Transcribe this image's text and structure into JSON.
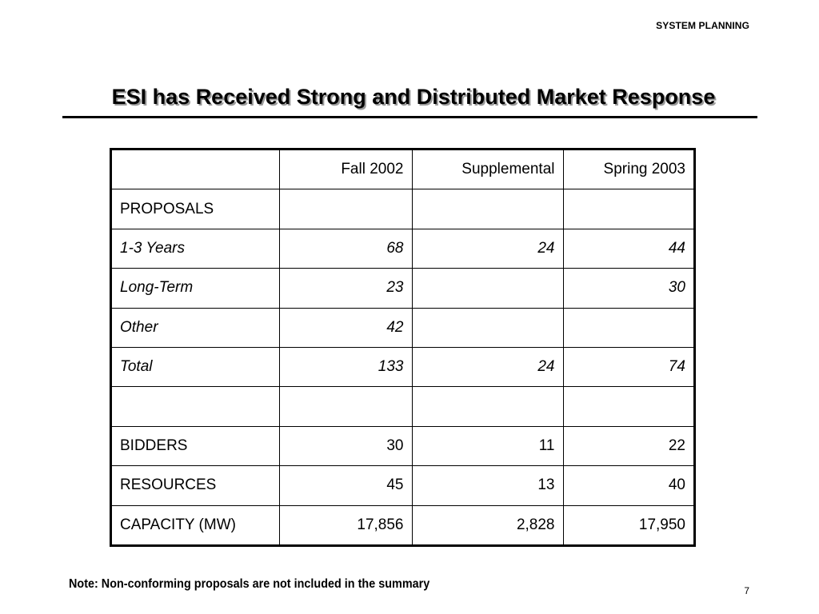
{
  "header": {
    "label": "SYSTEM PLANNING"
  },
  "title": "ESI has Received Strong and Distributed Market Response",
  "table": {
    "columns": [
      "",
      "Fall 2002",
      "Supplemental",
      "Spring 2003"
    ],
    "rows": [
      {
        "label": "PROPOSALS",
        "cells": [
          "",
          "",
          ""
        ],
        "italic": false
      },
      {
        "label": "1-3 Years",
        "cells": [
          "68",
          "24",
          "44"
        ],
        "italic": true
      },
      {
        "label": "Long-Term",
        "cells": [
          "23",
          "",
          "30"
        ],
        "italic": true
      },
      {
        "label": "Other",
        "cells": [
          "42",
          "",
          ""
        ],
        "italic": true
      },
      {
        "label": "Total",
        "cells": [
          "133",
          "24",
          "74"
        ],
        "italic": true
      },
      {
        "label": "",
        "cells": [
          "",
          "",
          ""
        ],
        "italic": false
      },
      {
        "label": "BIDDERS",
        "cells": [
          "30",
          "11",
          "22"
        ],
        "italic": false
      },
      {
        "label": "RESOURCES",
        "cells": [
          "45",
          "13",
          "40"
        ],
        "italic": false
      },
      {
        "label": "CAPACITY (MW)",
        "cells": [
          "17,856",
          "2,828",
          "17,950"
        ],
        "italic": false
      }
    ]
  },
  "footer": {
    "note": "Note: Non-conforming proposals are not included in the summary",
    "page_number": "7"
  }
}
